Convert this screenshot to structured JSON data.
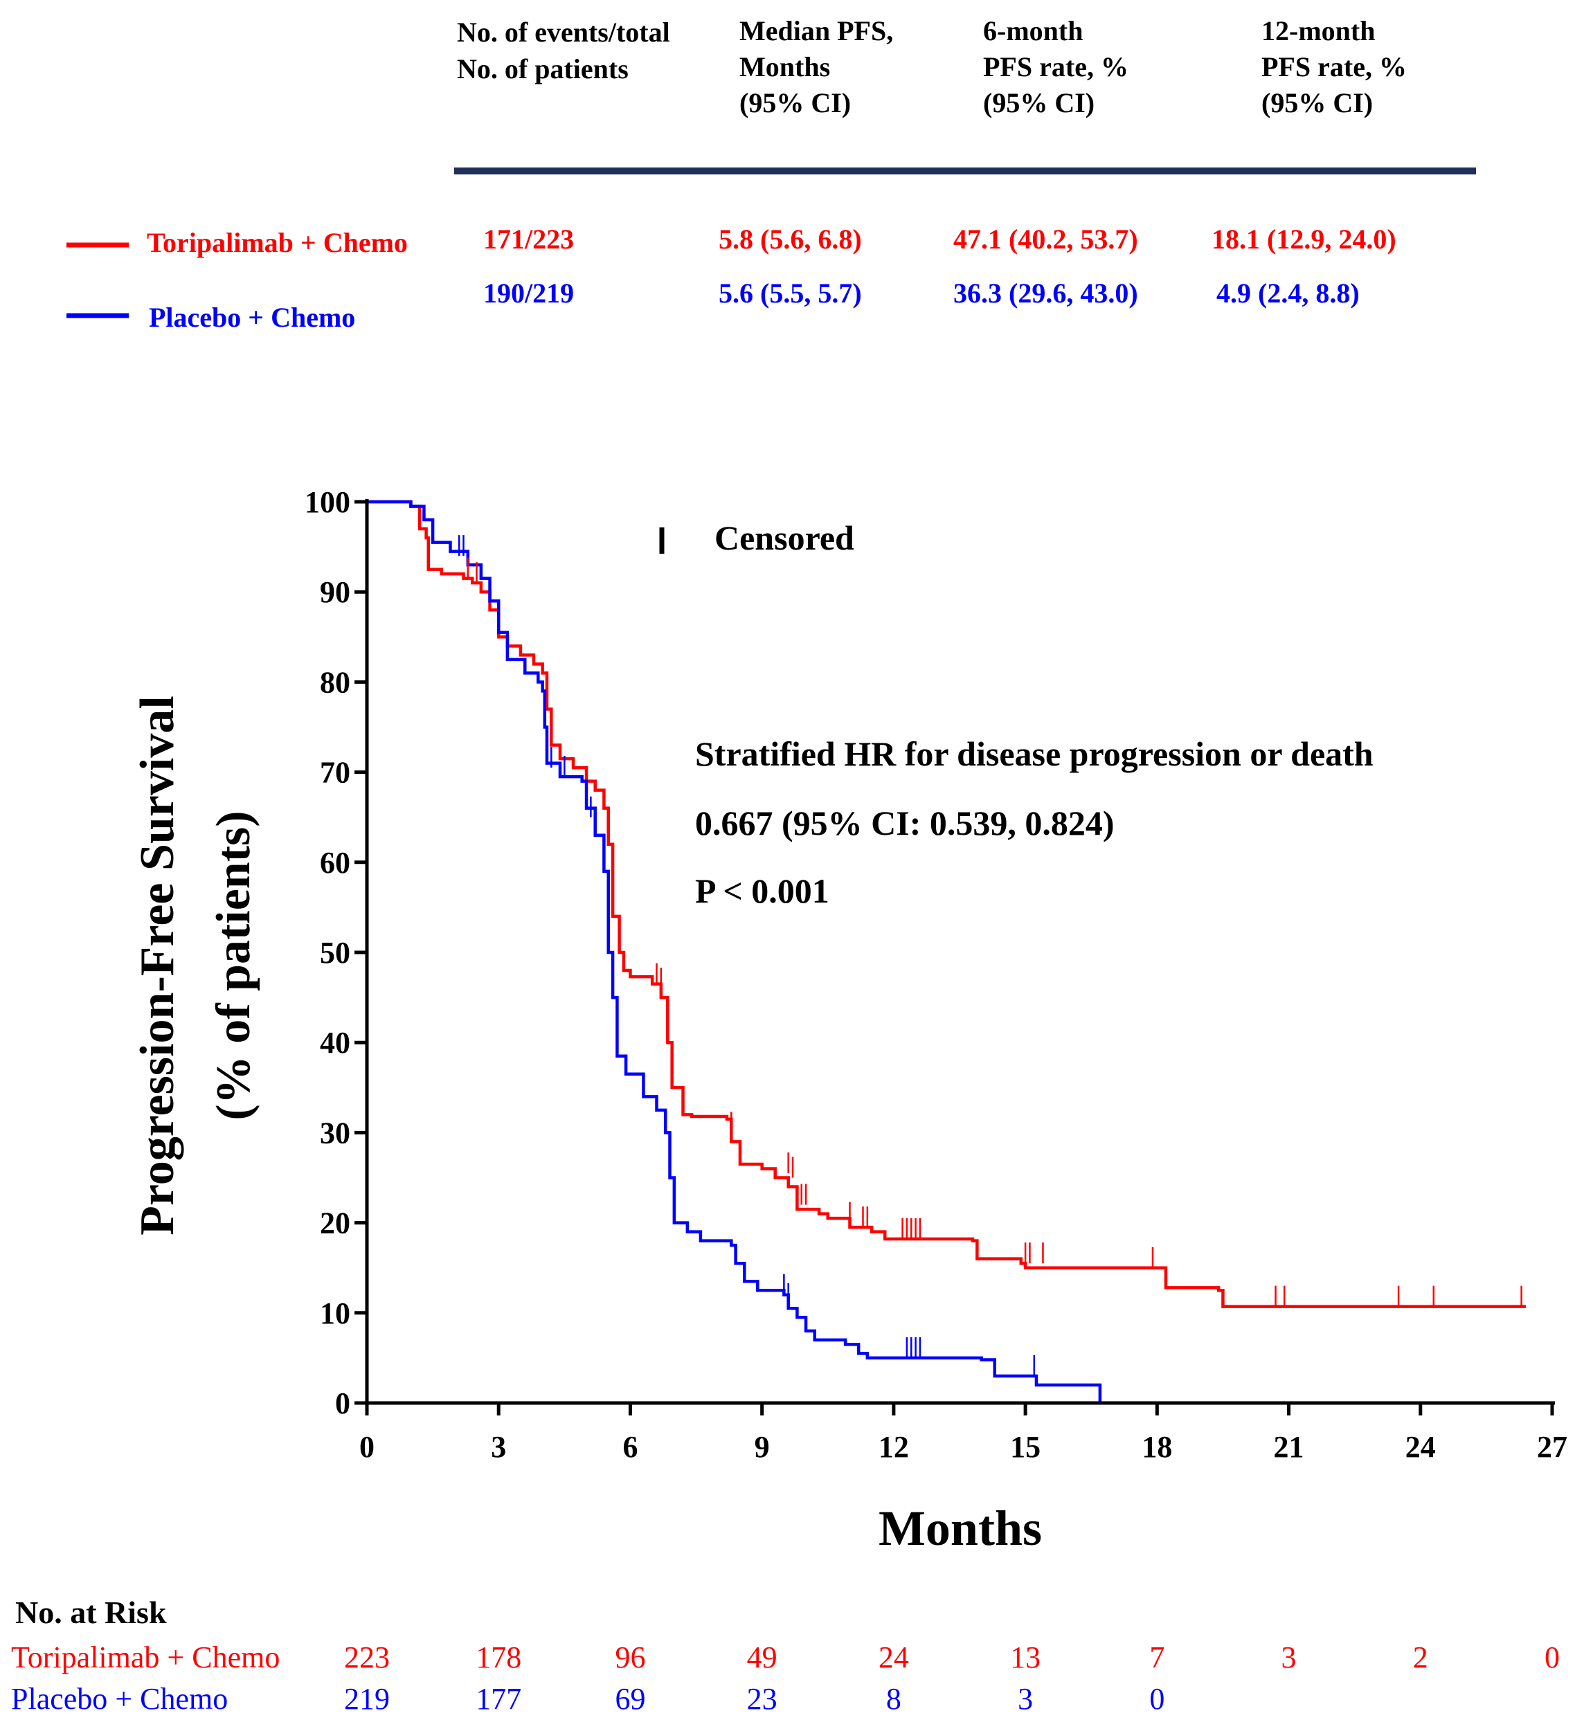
{
  "colors": {
    "toripalimab": "#ff0000",
    "placebo": "#0000ff",
    "header_rule": "#1f2f5c",
    "axis": "#000000"
  },
  "table": {
    "headers": [
      [
        "No. of events/total",
        "No. of patients"
      ],
      [
        "Median PFS,",
        "Months",
        "(95% CI)"
      ],
      [
        "6-month",
        "PFS rate, %",
        "(95% CI)"
      ],
      [
        "12-month",
        "PFS rate, %",
        "(95% CI)"
      ]
    ],
    "rows": [
      {
        "label": "Toripalimab + Chemo",
        "events": "171/223",
        "median": "5.8 (5.6, 6.8)",
        "rate6": "47.1 (40.2, 53.7)",
        "rate12": "18.1 (12.9, 24.0)"
      },
      {
        "label": "Placebo + Chemo",
        "events": "190/219",
        "median": "5.6 (5.5, 5.7)",
        "rate6": "36.3 (29.6, 43.0)",
        "rate12": "4.9 (2.4, 8.8)"
      }
    ]
  },
  "chart_data": {
    "type": "line",
    "step": true,
    "xlabel": "Months",
    "ylabel": [
      "Progression-Free Survival",
      "(% of patients)"
    ],
    "xlim": [
      0,
      27
    ],
    "ylim": [
      0,
      100
    ],
    "xticks": [
      "0",
      "3",
      "6",
      "9",
      "12",
      "15",
      "18",
      "21",
      "24",
      "27"
    ],
    "yticks": [
      "0",
      "10",
      "20",
      "30",
      "40",
      "50",
      "60",
      "70",
      "80",
      "90",
      "100"
    ],
    "censor_legend": "Censored",
    "annotation": {
      "line1": "Stratified HR for disease progression or death",
      "line2": "0.667 (95% CI: 0.539, 0.824)",
      "line3": "P < 0.001"
    },
    "series": [
      {
        "name": "Toripalimab + Chemo",
        "color": "#ff0000",
        "points": [
          [
            0,
            100
          ],
          [
            1.0,
            99.5
          ],
          [
            1.2,
            97
          ],
          [
            1.35,
            96
          ],
          [
            1.4,
            92.5
          ],
          [
            1.7,
            92
          ],
          [
            2.2,
            91.5
          ],
          [
            2.4,
            91
          ],
          [
            2.6,
            90
          ],
          [
            2.8,
            88
          ],
          [
            3.0,
            85
          ],
          [
            3.2,
            84
          ],
          [
            3.5,
            83
          ],
          [
            3.8,
            82
          ],
          [
            4.0,
            81
          ],
          [
            4.1,
            77
          ],
          [
            4.2,
            73
          ],
          [
            4.4,
            71.5
          ],
          [
            4.7,
            70.5
          ],
          [
            5.0,
            69
          ],
          [
            5.2,
            68
          ],
          [
            5.4,
            66
          ],
          [
            5.5,
            62
          ],
          [
            5.6,
            54
          ],
          [
            5.75,
            50
          ],
          [
            5.85,
            48
          ],
          [
            6.0,
            47.3
          ],
          [
            6.5,
            46.5
          ],
          [
            6.7,
            45
          ],
          [
            6.85,
            40
          ],
          [
            6.95,
            35
          ],
          [
            7.2,
            32
          ],
          [
            7.4,
            31.8
          ],
          [
            8.2,
            31.5
          ],
          [
            8.3,
            29
          ],
          [
            8.5,
            26.5
          ],
          [
            9.0,
            26
          ],
          [
            9.3,
            25
          ],
          [
            9.6,
            24
          ],
          [
            9.8,
            21.5
          ],
          [
            10.3,
            21
          ],
          [
            10.5,
            20.5
          ],
          [
            11.0,
            19.5
          ],
          [
            11.5,
            19
          ],
          [
            11.8,
            18.2
          ],
          [
            13.8,
            18
          ],
          [
            13.9,
            16
          ],
          [
            14.9,
            15.5
          ],
          [
            15.0,
            15
          ],
          [
            18.1,
            15
          ],
          [
            18.2,
            12.8
          ],
          [
            19.4,
            12.5
          ],
          [
            19.5,
            10.7
          ],
          [
            26.4,
            10.7
          ]
        ],
        "censors": [
          [
            2.3,
            91.5
          ],
          [
            2.5,
            91
          ],
          [
            6.6,
            46.5
          ],
          [
            6.7,
            46
          ],
          [
            8.3,
            30
          ],
          [
            9.6,
            25.5
          ],
          [
            9.7,
            25
          ],
          [
            9.9,
            22
          ],
          [
            10.0,
            22
          ],
          [
            11.0,
            20
          ],
          [
            11.3,
            19.5
          ],
          [
            11.4,
            19.5
          ],
          [
            12.2,
            18.2
          ],
          [
            12.3,
            18.2
          ],
          [
            12.4,
            18.2
          ],
          [
            12.5,
            18.2
          ],
          [
            12.6,
            18.2
          ],
          [
            15.0,
            15.5
          ],
          [
            15.1,
            15.5
          ],
          [
            15.4,
            15.5
          ],
          [
            17.9,
            15
          ],
          [
            20.7,
            10.7
          ],
          [
            20.9,
            10.7
          ],
          [
            23.5,
            10.7
          ],
          [
            24.3,
            10.7
          ],
          [
            26.3,
            10.7
          ]
        ],
        "at_risk": [
          "223",
          "178",
          "96",
          "49",
          "24",
          "13",
          "7",
          "3",
          "2",
          "0"
        ]
      },
      {
        "name": "Placebo + Chemo",
        "color": "#0000ff",
        "points": [
          [
            0,
            100
          ],
          [
            1.0,
            99.5
          ],
          [
            1.3,
            98
          ],
          [
            1.5,
            95.5
          ],
          [
            1.9,
            94.5
          ],
          [
            2.3,
            93
          ],
          [
            2.6,
            91.5
          ],
          [
            2.8,
            89
          ],
          [
            3.0,
            85.5
          ],
          [
            3.2,
            82.5
          ],
          [
            3.6,
            81
          ],
          [
            3.9,
            80
          ],
          [
            4.0,
            79
          ],
          [
            4.05,
            75
          ],
          [
            4.1,
            71
          ],
          [
            4.4,
            69.5
          ],
          [
            4.9,
            69
          ],
          [
            5.0,
            66
          ],
          [
            5.2,
            63
          ],
          [
            5.4,
            59
          ],
          [
            5.5,
            50
          ],
          [
            5.6,
            45
          ],
          [
            5.7,
            38.5
          ],
          [
            5.9,
            36.5
          ],
          [
            6.3,
            34
          ],
          [
            6.6,
            32.5
          ],
          [
            6.8,
            30
          ],
          [
            6.9,
            25
          ],
          [
            7.0,
            20
          ],
          [
            7.3,
            19
          ],
          [
            7.6,
            18
          ],
          [
            8.3,
            17.5
          ],
          [
            8.4,
            15.5
          ],
          [
            8.6,
            13.5
          ],
          [
            8.9,
            12.5
          ],
          [
            9.5,
            12
          ],
          [
            9.6,
            10.5
          ],
          [
            9.8,
            9.5
          ],
          [
            10.0,
            8
          ],
          [
            10.2,
            7
          ],
          [
            10.9,
            6.5
          ],
          [
            11.2,
            5.5
          ],
          [
            11.4,
            5
          ],
          [
            14.0,
            4.8
          ],
          [
            14.3,
            3
          ],
          [
            15.2,
            3
          ],
          [
            15.25,
            2
          ],
          [
            16.7,
            2
          ],
          [
            16.7,
            0
          ]
        ],
        "censors": [
          [
            2.1,
            94
          ],
          [
            2.2,
            94
          ],
          [
            4.2,
            70.5
          ],
          [
            4.5,
            69.5
          ],
          [
            5.1,
            65
          ],
          [
            9.5,
            12
          ],
          [
            9.6,
            11
          ],
          [
            12.3,
            5
          ],
          [
            12.4,
            5
          ],
          [
            12.5,
            5
          ],
          [
            12.6,
            5
          ],
          [
            15.2,
            3
          ]
        ],
        "at_risk": [
          "219",
          "177",
          "69",
          "23",
          "8",
          "3",
          "0",
          "",
          "",
          ""
        ]
      }
    ],
    "risk_table_title": "No. at Risk"
  }
}
